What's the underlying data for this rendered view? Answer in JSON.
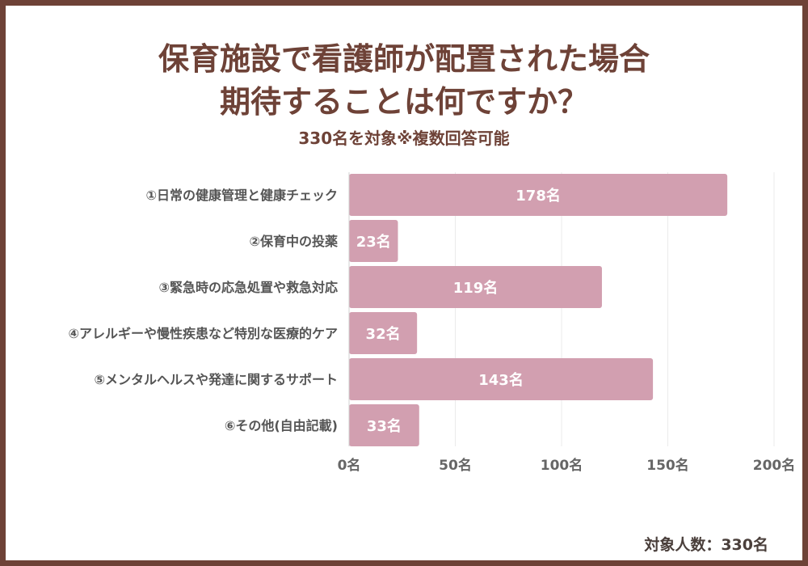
{
  "title_line1": "保育施設で看護師が配置された場合",
  "title_line2": "期待することは何ですか？",
  "subtitle": "330名を対象※複数回答可能",
  "footer": "対象人数：330名",
  "chart_data": {
    "type": "bar",
    "orientation": "horizontal",
    "categories": [
      "①日常の健康管理と健康チェック",
      "②保育中の投薬",
      "③緊急時の応急処置や救急対応",
      "④アレルギーや慢性疾患など特別な医療的ケア",
      "⑤メンタルヘルスや発達に関するサポート",
      "⑥その他(自由記載)"
    ],
    "values": [
      178,
      23,
      119,
      32,
      143,
      33
    ],
    "value_labels": [
      "178名",
      "23名",
      "119名",
      "32名",
      "143名",
      "33名"
    ],
    "xlim": [
      0,
      200
    ],
    "xticks": [
      0,
      50,
      100,
      150,
      200
    ],
    "xtick_labels": [
      "0名",
      "50名",
      "100名",
      "150名",
      "200名"
    ],
    "grid": true,
    "bar_color": "#d29fb0"
  }
}
